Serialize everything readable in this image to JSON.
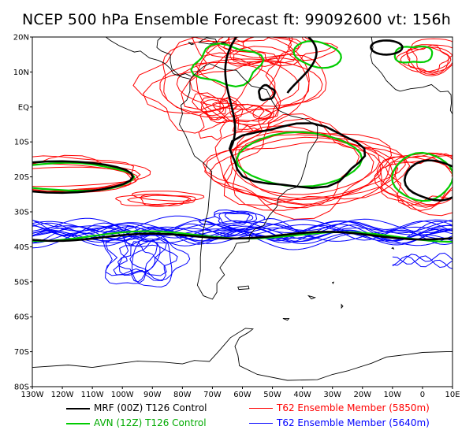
{
  "title": "NCEP 500 hPa Ensemble Forecast  ft: 99092600 vt: 156h",
  "map": {
    "lon_range": [
      -130,
      10
    ],
    "lat_range": [
      -80,
      20
    ],
    "lon_ticks": [
      {
        "value": -130,
        "label": "130W"
      },
      {
        "value": -120,
        "label": "120W"
      },
      {
        "value": -110,
        "label": "110W"
      },
      {
        "value": -100,
        "label": "100W"
      },
      {
        "value": -90,
        "label": "90W"
      },
      {
        "value": -80,
        "label": "80W"
      },
      {
        "value": -70,
        "label": "70W"
      },
      {
        "value": -60,
        "label": "60W"
      },
      {
        "value": -50,
        "label": "50W"
      },
      {
        "value": -40,
        "label": "40W"
      },
      {
        "value": -30,
        "label": "30W"
      },
      {
        "value": -20,
        "label": "20W"
      },
      {
        "value": -10,
        "label": "10W"
      },
      {
        "value": 0,
        "label": "0"
      },
      {
        "value": 10,
        "label": "10E"
      }
    ],
    "lat_ticks": [
      {
        "value": 20,
        "label": "20N"
      },
      {
        "value": 10,
        "label": "10N"
      },
      {
        "value": 0,
        "label": "EQ"
      },
      {
        "value": -10,
        "label": "10S"
      },
      {
        "value": -20,
        "label": "20S"
      },
      {
        "value": -30,
        "label": "30S"
      },
      {
        "value": -40,
        "label": "40S"
      },
      {
        "value": -50,
        "label": "50S"
      },
      {
        "value": -60,
        "label": "60S"
      },
      {
        "value": -70,
        "label": "70S"
      },
      {
        "value": -80,
        "label": "80S"
      }
    ]
  },
  "legend": [
    {
      "label": "MRF (00Z) T126 Control",
      "color": "#000000",
      "width": 2.5
    },
    {
      "label": "T62 Ensemble Member (5850m)",
      "color": "#ff0000",
      "width": 1
    },
    {
      "label": "AVN (12Z) T126 Control",
      "color": "#00cc00",
      "width": 2.5
    },
    {
      "label": "T62 Ensemble Member (5640m)",
      "color": "#0000ff",
      "width": 1
    }
  ],
  "colors": {
    "coast": "#000000",
    "mrf": "#000000",
    "avn": "#00cc00",
    "member_5850": "#ff0000",
    "member_5640": "#0000ff"
  }
}
